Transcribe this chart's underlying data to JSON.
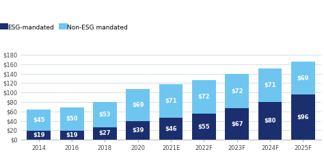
{
  "categories": [
    "2014",
    "2016",
    "2018",
    "2020",
    "2021E",
    "2022F",
    "2023F",
    "2024F",
    "2025F"
  ],
  "esg_mandated": [
    19,
    19,
    27,
    39,
    46,
    55,
    67,
    80,
    96
  ],
  "non_esg_mandated": [
    45,
    50,
    53,
    69,
    71,
    72,
    72,
    71,
    69
  ],
  "esg_color": "#1b2f6e",
  "non_esg_color": "#6ec6f0",
  "legend_labels": [
    "ESG-mandated",
    "Non-ESG mandated"
  ],
  "ylabel_ticks": [
    0,
    20,
    40,
    60,
    80,
    100,
    120,
    140,
    160,
    180
  ],
  "ylim": [
    0,
    190
  ],
  "bg_color": "#ffffff",
  "plot_bg_color": "#ffffff",
  "label_fontsize": 6.0,
  "tick_fontsize": 6.0,
  "legend_fontsize": 6.5
}
